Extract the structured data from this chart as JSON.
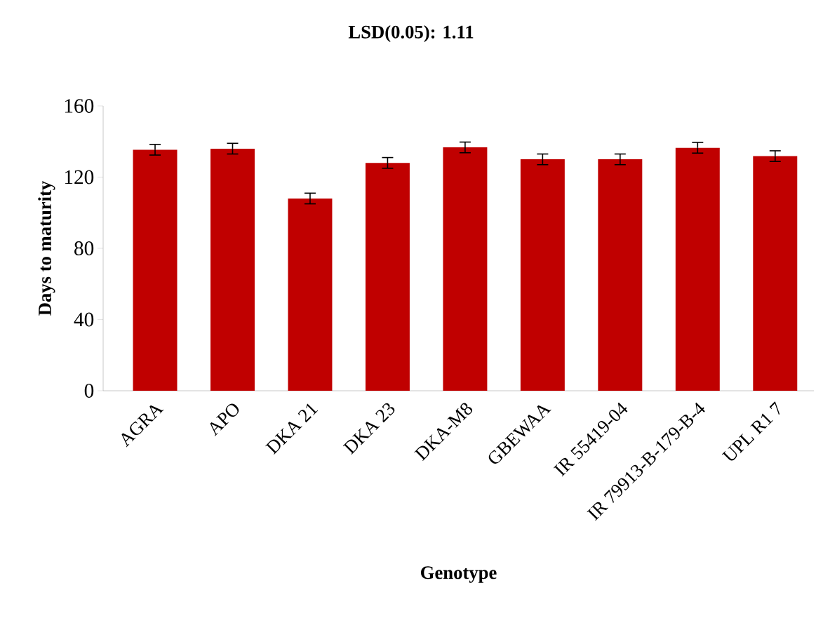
{
  "chart_data": {
    "type": "bar",
    "title": "LSD(0.05): 1.11",
    "xlabel": "Genotype",
    "ylabel": "Days to maturity",
    "categories": [
      "AGRA",
      "APO",
      "DKA 21",
      "DKA 23",
      "DKA-M8",
      "GBEWAA",
      "IR 55419-04",
      "IR 79913-B-179-B-4",
      "UPL R1 7"
    ],
    "values": [
      135.4,
      136,
      108,
      128,
      136.7,
      130,
      130,
      136.5,
      131.8
    ],
    "errors": [
      3,
      3,
      3,
      3,
      3,
      3,
      3,
      3,
      3
    ],
    "color": "#c00000",
    "ylim": [
      0,
      160
    ],
    "yticks": [
      0,
      40,
      80,
      120,
      160
    ],
    "grid": false
  }
}
